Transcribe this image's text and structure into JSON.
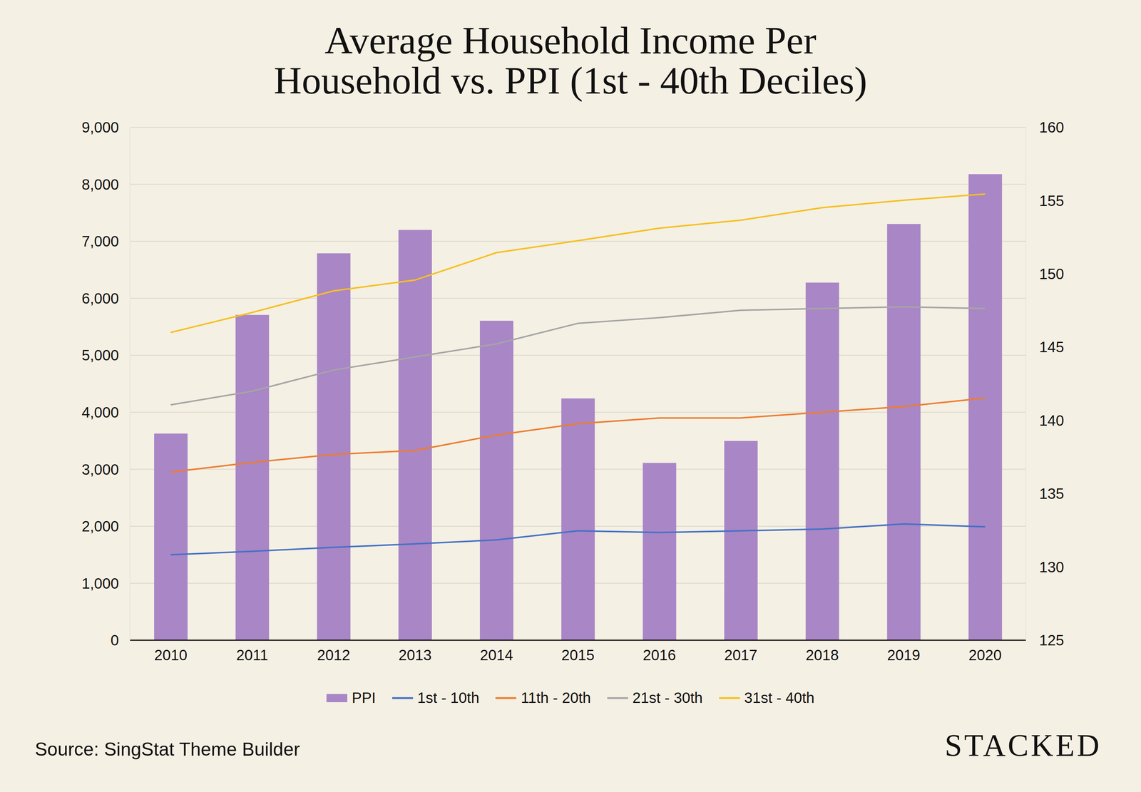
{
  "chart_data": {
    "type": "bar",
    "title": "Average Household Income Per\nHousehold vs. PPI (1st - 40th Deciles)",
    "source": "Source: SingStat Theme Builder",
    "brand": "STACKED",
    "categories": [
      "2010",
      "2011",
      "2012",
      "2013",
      "2014",
      "2015",
      "2016",
      "2017",
      "2018",
      "2019",
      "2020"
    ],
    "series": [
      {
        "name": "PPI",
        "type": "bar",
        "axis": "y2",
        "color": "#a986c6",
        "values": [
          139.1,
          147.2,
          151.4,
          153.0,
          146.8,
          141.5,
          137.1,
          138.6,
          149.4,
          153.4,
          156.8
        ]
      },
      {
        "name": "1st - 10th",
        "type": "line",
        "color": "#4472c4",
        "values": [
          1500,
          1560,
          1630,
          1690,
          1760,
          1920,
          1890,
          1920,
          1950,
          2040,
          1990
        ]
      },
      {
        "name": "11th - 20th",
        "type": "line",
        "color": "#ed7d31",
        "values": [
          2950,
          3120,
          3260,
          3330,
          3600,
          3800,
          3900,
          3900,
          4000,
          4100,
          4250
        ]
      },
      {
        "name": "21st - 30th",
        "type": "line",
        "color": "#a5a5a5",
        "values": [
          4130,
          4370,
          4740,
          4970,
          5200,
          5560,
          5660,
          5790,
          5820,
          5850,
          5820
        ]
      },
      {
        "name": "31st - 40th",
        "type": "line",
        "color": "#f5c020",
        "values": [
          5400,
          5750,
          6130,
          6320,
          6800,
          7010,
          7230,
          7370,
          7590,
          7720,
          7830
        ]
      }
    ],
    "ylim": [
      0,
      9000
    ],
    "yticks": [
      0,
      {
        "value": 1000,
        "label": "1,000"
      },
      {
        "value": 2000,
        "label": "2,000"
      },
      {
        "value": 3000,
        "label": "3,000"
      },
      {
        "value": 4000,
        "label": "4,000"
      },
      {
        "value": 5000,
        "label": "5,000"
      },
      {
        "value": 6000,
        "label": "6,000"
      },
      {
        "value": 7000,
        "label": "7,000"
      },
      {
        "value": 8000,
        "label": "8,000"
      },
      {
        "value": 9000,
        "label": "9,000"
      }
    ],
    "y2lim": [
      125,
      160
    ],
    "y2ticks": [
      125,
      130,
      135,
      140,
      145,
      150,
      155,
      160
    ],
    "grid": true,
    "legend": "bottom"
  }
}
